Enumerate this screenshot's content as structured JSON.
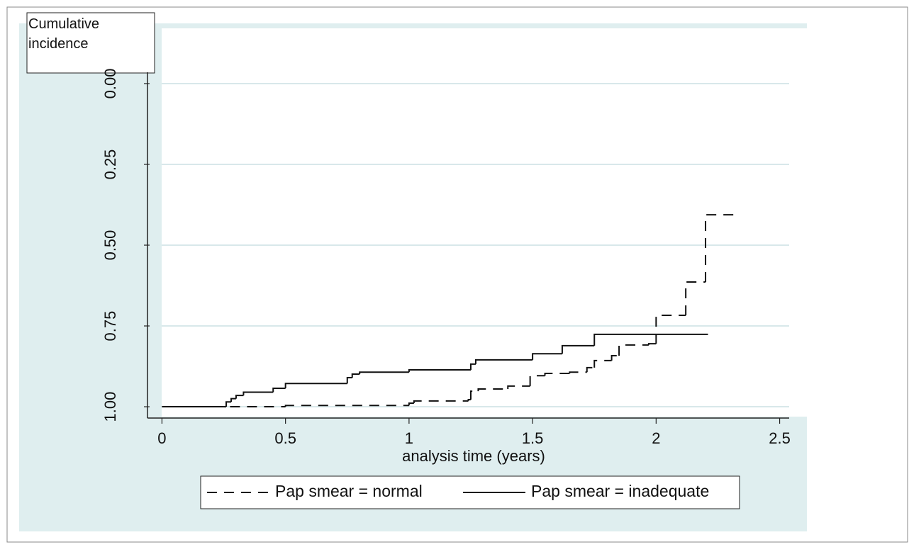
{
  "chart_data": {
    "type": "step",
    "y_title": "Cumulative incidence",
    "x_label": "analysis time (years)",
    "xlim": [
      -0.05,
      2.55
    ],
    "xticks": [
      0,
      0.5,
      1,
      1.5,
      2,
      2.5
    ],
    "ylim": [
      1.035,
      -0.035
    ],
    "yticks": [
      {
        "value": 0,
        "label": "0.00"
      },
      0.25,
      {
        "value": 0.5,
        "label": "0.50"
      },
      0.75,
      {
        "value": 1,
        "label": "1.00"
      }
    ],
    "grid": true,
    "series": [
      {
        "name": "Pap smear = normal",
        "color": "#111111",
        "dash": "14 10",
        "x": [
          0,
          0.5,
          1.0,
          1.02,
          1.24,
          1.25,
          1.28,
          1.4,
          1.49,
          1.55,
          1.65,
          1.72,
          1.75,
          1.82,
          1.85,
          1.97,
          2.0,
          2.12,
          2.2,
          2.32
        ],
        "values": [
          1.0,
          0.996,
          0.989,
          0.982,
          0.978,
          0.952,
          0.945,
          0.936,
          0.904,
          0.897,
          0.893,
          0.879,
          0.857,
          0.842,
          0.809,
          0.805,
          0.717,
          0.614,
          0.406,
          0.406
        ]
      },
      {
        "name": "Pap smear = inadequate",
        "color": "#111111",
        "dash": "none",
        "x": [
          0,
          0.25,
          0.26,
          0.28,
          0.3,
          0.33,
          0.45,
          0.5,
          0.75,
          0.77,
          0.8,
          1.0,
          1.25,
          1.27,
          1.5,
          1.62,
          1.75,
          2.21
        ],
        "values": [
          1.0,
          1.0,
          0.985,
          0.975,
          0.965,
          0.955,
          0.943,
          0.928,
          0.91,
          0.899,
          0.893,
          0.886,
          0.868,
          0.855,
          0.836,
          0.811,
          0.776,
          0.776
        ]
      }
    ]
  }
}
